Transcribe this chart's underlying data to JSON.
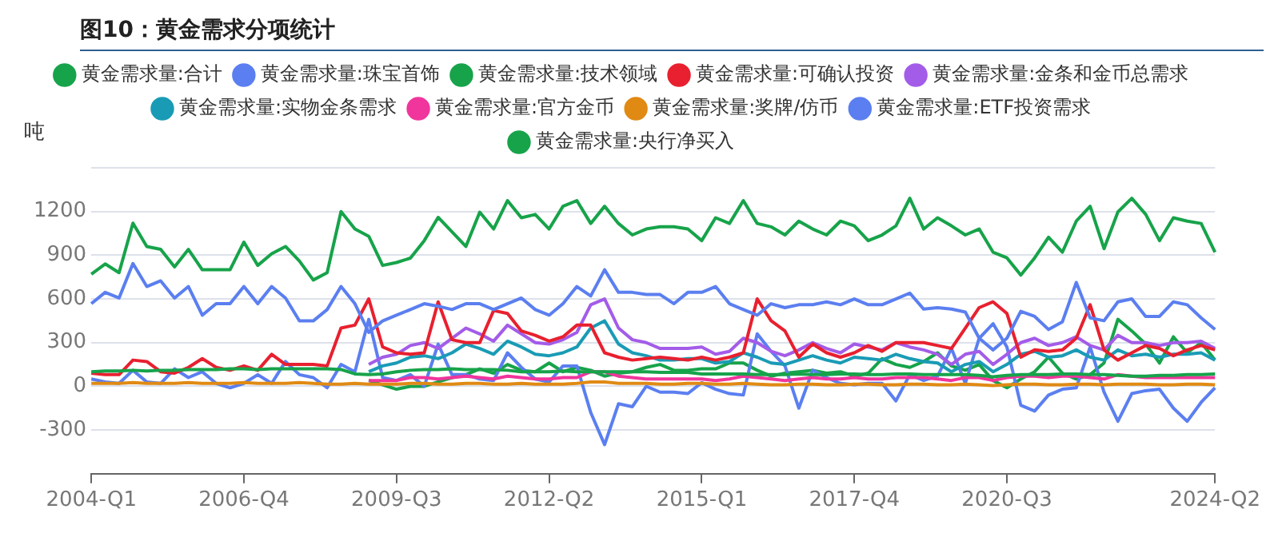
{
  "chart_data": {
    "type": "line",
    "title": "图10：黄金需求分项统计",
    "ylabel": "吨",
    "categories": [
      "2004-Q1",
      null,
      null,
      null,
      null,
      null,
      null,
      null,
      null,
      null,
      null,
      "2006-Q4",
      null,
      null,
      null,
      null,
      null,
      null,
      null,
      null,
      null,
      null,
      "2009-Q3",
      null,
      null,
      null,
      null,
      null,
      null,
      null,
      null,
      null,
      null,
      "2012-Q2",
      null,
      null,
      null,
      null,
      null,
      null,
      null,
      null,
      null,
      null,
      "2015-Q1",
      null,
      null,
      null,
      null,
      null,
      null,
      null,
      null,
      null,
      null,
      "2017-Q4",
      null,
      null,
      null,
      null,
      null,
      null,
      null,
      null,
      null,
      null,
      "2020-Q3",
      null,
      null,
      null,
      null,
      null,
      null,
      null,
      null,
      null,
      null,
      null,
      null,
      null,
      null,
      "2024-Q2"
    ],
    "series": [
      {
        "name": "黄金需求量:合计",
        "color": "#17a34a",
        "values": [
          770,
          840,
          780,
          1120,
          960,
          940,
          820,
          940,
          800,
          800,
          800,
          990,
          830,
          910,
          960,
          860,
          730,
          780,
          1200,
          1080,
          1030,
          830,
          850,
          880,
          1000,
          1160,
          1060,
          960,
          1195,
          1080,
          1275,
          1157,
          1180,
          1080,
          1236,
          1275,
          1118,
          1236,
          1118,
          1039,
          1080,
          1095,
          1095,
          1080,
          1000,
          1157,
          1118,
          1275,
          1118,
          1095,
          1039,
          1134,
          1080,
          1039,
          1134,
          1102,
          1000,
          1039,
          1102,
          1291,
          1080,
          1157,
          1102,
          1039,
          1080,
          921,
          882,
          764,
          882,
          1023,
          921,
          1134,
          1236,
          945,
          1197,
          1291,
          1181,
          1000,
          1157,
          1134,
          1118,
          921
        ]
      },
      {
        "name": "黄金需求量:珠宝首饰",
        "color": "#5b7ff0",
        "values": [
          567,
          645,
          606,
          843,
          685,
          724,
          606,
          685,
          488,
          567,
          567,
          685,
          567,
          685,
          606,
          449,
          449,
          527,
          685,
          567,
          370,
          449,
          488,
          527,
          567,
          550,
          527,
          567,
          567,
          527,
          567,
          606,
          527,
          488,
          567,
          685,
          620,
          800,
          645,
          645,
          630,
          630,
          567,
          645,
          645,
          685,
          567,
          527,
          488,
          567,
          540,
          560,
          560,
          580,
          560,
          600,
          560,
          560,
          600,
          640,
          530,
          540,
          530,
          510,
          330,
          250,
          330,
          515,
          480,
          390,
          443,
          713,
          470,
          450,
          580,
          600,
          480,
          480,
          580,
          560,
          470,
          390
        ]
      },
      {
        "name": "黄金需求量:技术领域",
        "color": "#17a34a",
        "values": [
          100,
          105,
          105,
          110,
          105,
          110,
          110,
          115,
          115,
          115,
          120,
          120,
          115,
          120,
          120,
          120,
          120,
          120,
          115,
          85,
          80,
          85,
          100,
          110,
          115,
          115,
          120,
          115,
          115,
          115,
          110,
          100,
          100,
          100,
          105,
          100,
          100,
          100,
          100,
          100,
          100,
          95,
          95,
          95,
          85,
          85,
          85,
          85,
          80,
          80,
          80,
          85,
          80,
          80,
          85,
          85,
          80,
          80,
          85,
          85,
          80,
          80,
          80,
          80,
          75,
          65,
          75,
          80,
          80,
          80,
          85,
          85,
          80,
          80,
          75,
          70,
          70,
          75,
          75,
          80,
          80,
          85
        ]
      },
      {
        "name": "黄金需求量:可确认投资",
        "color": "#e8202f",
        "values": [
          90,
          80,
          80,
          180,
          170,
          100,
          90,
          130,
          190,
          130,
          110,
          140,
          110,
          220,
          150,
          150,
          150,
          140,
          400,
          420,
          600,
          270,
          230,
          220,
          230,
          580,
          320,
          300,
          300,
          520,
          500,
          380,
          350,
          310,
          340,
          420,
          420,
          230,
          200,
          180,
          190,
          200,
          190,
          180,
          200,
          180,
          200,
          230,
          600,
          450,
          380,
          200,
          290,
          230,
          200,
          230,
          280,
          240,
          300,
          300,
          300,
          280,
          260,
          400,
          540,
          580,
          500,
          200,
          250,
          240,
          250,
          330,
          560,
          250,
          180,
          230,
          280,
          260,
          210,
          250,
          280,
          250
        ]
      },
      {
        "name": "黄金需求量:金条和金币总需求",
        "color": "#a35ce8",
        "values": [
          null,
          null,
          null,
          null,
          null,
          null,
          null,
          null,
          null,
          null,
          null,
          null,
          null,
          null,
          null,
          null,
          null,
          null,
          null,
          null,
          150,
          200,
          220,
          280,
          300,
          260,
          330,
          400,
          360,
          310,
          420,
          360,
          300,
          290,
          320,
          370,
          560,
          600,
          400,
          320,
          300,
          260,
          260,
          260,
          270,
          220,
          240,
          330,
          300,
          240,
          210,
          250,
          300,
          260,
          230,
          290,
          270,
          250,
          300,
          270,
          250,
          220,
          150,
          220,
          240,
          150,
          220,
          300,
          330,
          280,
          300,
          340,
          280,
          250,
          350,
          300,
          300,
          280,
          300,
          300,
          310,
          260
        ]
      },
      {
        "name": "黄金需求量:实物金条需求",
        "color": "#1a9bb5",
        "values": [
          null,
          null,
          null,
          null,
          null,
          null,
          null,
          null,
          null,
          null,
          null,
          null,
          null,
          null,
          null,
          null,
          null,
          null,
          null,
          null,
          100,
          140,
          160,
          200,
          210,
          190,
          230,
          290,
          260,
          220,
          310,
          270,
          220,
          210,
          230,
          270,
          400,
          450,
          290,
          230,
          210,
          180,
          180,
          190,
          190,
          160,
          170,
          230,
          200,
          160,
          150,
          180,
          210,
          180,
          160,
          200,
          190,
          180,
          220,
          190,
          170,
          160,
          100,
          150,
          170,
          100,
          150,
          220,
          240,
          200,
          210,
          250,
          200,
          180,
          250,
          210,
          220,
          200,
          220,
          220,
          230,
          180
        ]
      },
      {
        "name": "黄金需求量:官方金币",
        "color": "#f0359c",
        "values": [
          null,
          null,
          null,
          null,
          null,
          null,
          null,
          null,
          null,
          null,
          null,
          null,
          null,
          null,
          null,
          null,
          null,
          null,
          null,
          null,
          40,
          40,
          40,
          60,
          60,
          50,
          60,
          70,
          60,
          50,
          70,
          60,
          50,
          50,
          60,
          60,
          100,
          100,
          70,
          60,
          50,
          50,
          50,
          50,
          50,
          40,
          50,
          70,
          60,
          50,
          40,
          50,
          60,
          50,
          50,
          60,
          50,
          50,
          60,
          60,
          60,
          50,
          40,
          60,
          60,
          40,
          60,
          70,
          70,
          60,
          70,
          70,
          60,
          50,
          80,
          70,
          60,
          60,
          60,
          60,
          60,
          60
        ]
      },
      {
        "name": "黄金需求量:奖牌/仿币",
        "color": "#e08a14",
        "values": [
          20,
          20,
          20,
          25,
          20,
          20,
          20,
          25,
          20,
          20,
          20,
          25,
          20,
          20,
          20,
          25,
          20,
          15,
          15,
          20,
          15,
          15,
          15,
          20,
          20,
          15,
          15,
          20,
          20,
          15,
          15,
          20,
          15,
          15,
          15,
          20,
          30,
          30,
          20,
          20,
          20,
          15,
          15,
          20,
          20,
          15,
          15,
          20,
          15,
          10,
          10,
          15,
          15,
          10,
          10,
          15,
          15,
          10,
          10,
          15,
          15,
          10,
          10,
          15,
          10,
          5,
          10,
          15,
          15,
          10,
          10,
          15,
          15,
          10,
          15,
          15,
          15,
          10,
          10,
          15,
          15,
          10
        ]
      },
      {
        "name": "黄金需求量:ETF投资需求",
        "color": "#5b7ff0",
        "values": [
          50,
          30,
          20,
          110,
          30,
          20,
          120,
          60,
          100,
          20,
          -10,
          20,
          80,
          20,
          170,
          80,
          60,
          -10,
          150,
          100,
          460,
          60,
          40,
          80,
          0,
          290,
          80,
          80,
          50,
          40,
          230,
          130,
          50,
          30,
          140,
          140,
          -180,
          -400,
          -120,
          -140,
          0,
          -40,
          -40,
          -50,
          25,
          -20,
          -50,
          -60,
          360,
          240,
          140,
          -150,
          110,
          60,
          20,
          10,
          20,
          20,
          -100,
          80,
          40,
          70,
          260,
          20,
          330,
          430,
          270,
          -130,
          -170,
          -60,
          -20,
          -10,
          270,
          -40,
          -240,
          -50,
          -30,
          -20,
          -150,
          -240,
          -110,
          -10
        ]
      },
      {
        "name": "黄金需求量:央行净买入",
        "color": "#17a34a",
        "values": [
          null,
          null,
          null,
          null,
          null,
          null,
          null,
          null,
          null,
          null,
          null,
          null,
          null,
          null,
          null,
          null,
          null,
          null,
          null,
          null,
          40,
          10,
          -20,
          0,
          0,
          30,
          60,
          80,
          120,
          90,
          150,
          110,
          100,
          160,
          100,
          130,
          110,
          70,
          90,
          100,
          130,
          150,
          110,
          110,
          120,
          120,
          160,
          160,
          110,
          70,
          90,
          100,
          110,
          90,
          100,
          70,
          90,
          190,
          150,
          130,
          170,
          230,
          140,
          110,
          150,
          40,
          -10,
          50,
          100,
          200,
          90,
          50,
          80,
          160,
          460,
          380,
          290,
          160,
          340,
          230,
          300,
          180
        ]
      }
    ],
    "ylim": [
      -600,
      1500
    ],
    "yticks": [
      {
        "value": -600,
        "label": null
      },
      -300,
      0,
      300,
      600,
      900,
      1200,
      {
        "value": 1500,
        "label": null
      }
    ],
    "grid": "y",
    "legend": "top",
    "marker": "none",
    "line_style": "solid"
  }
}
